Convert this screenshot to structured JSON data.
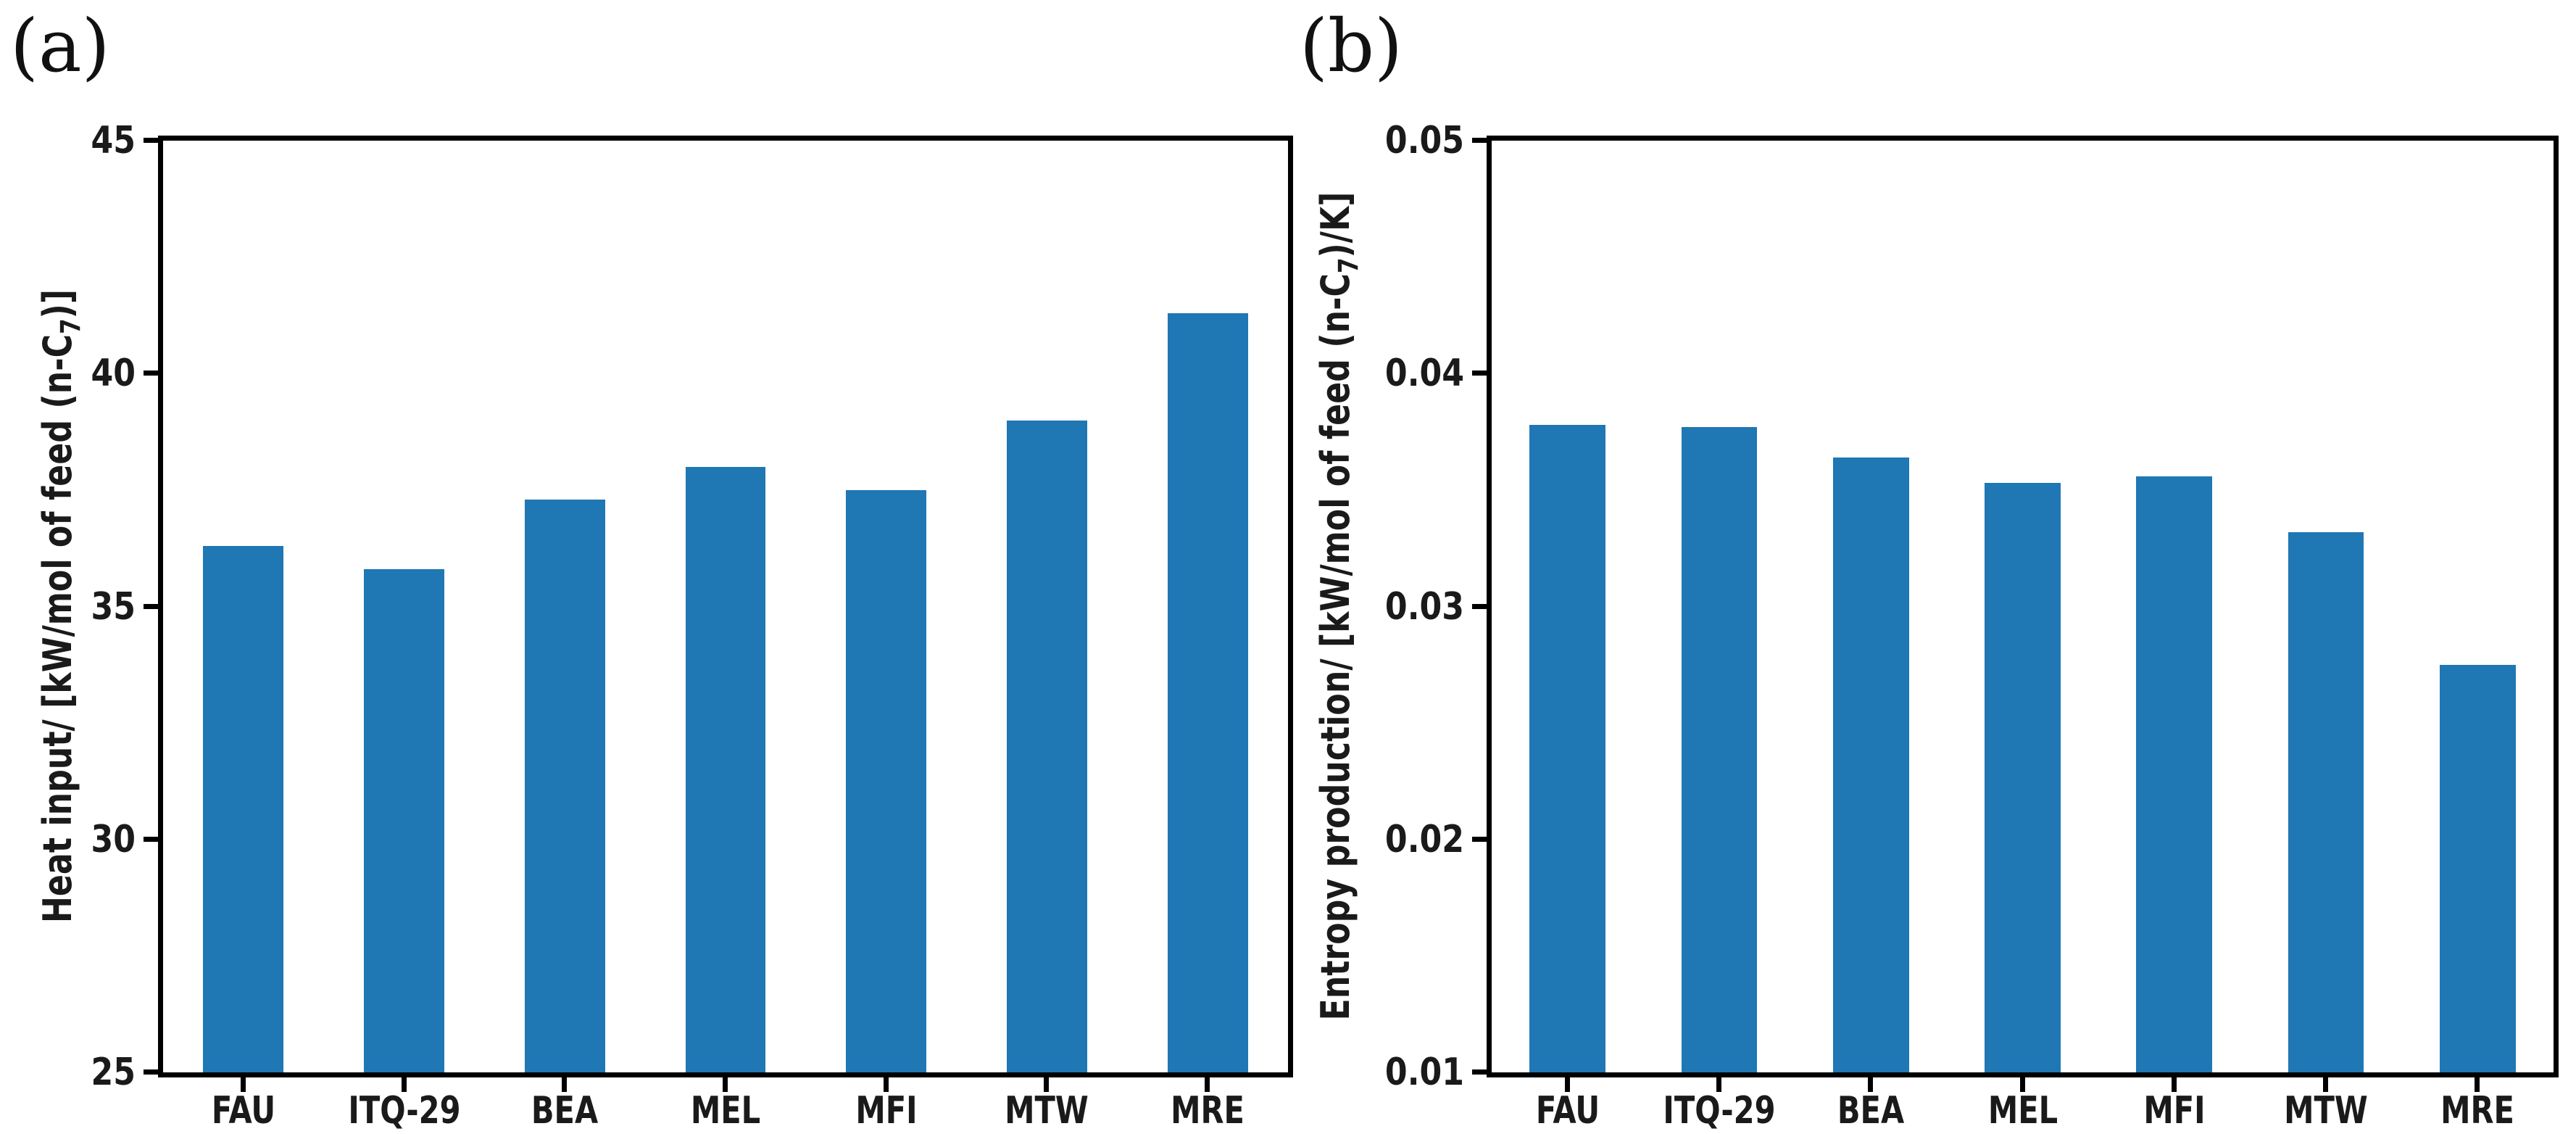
{
  "figure": {
    "background": "#ffffff",
    "axis_color": "#000000",
    "text_color": "#1a1a1a",
    "bar_color": "#1f77b4"
  },
  "chart_data": [
    {
      "type": "bar",
      "panel_label": "(a)",
      "title": "",
      "xlabel": "",
      "ylabel": "Heat input/ [kW/mol of feed (n-C₇)]",
      "ylabel_pre": "Heat input/ [kW/mol of feed (n-C",
      "ylabel_sub": "7",
      "ylabel_post": ")]",
      "categories": [
        "FAU",
        "ITQ-29",
        "BEA",
        "MEL",
        "MFI",
        "MTW",
        "MRE"
      ],
      "values": [
        36.3,
        35.8,
        37.3,
        38.0,
        37.5,
        39.0,
        41.3
      ],
      "ylim": [
        25,
        45
      ],
      "yticks": [
        45,
        40,
        35,
        30,
        25
      ],
      "ytick_labels": [
        "45",
        "40",
        "35",
        "30",
        "25"
      ],
      "bar_color": "#1f77b4",
      "bar_width_ratio": 0.5,
      "grid": false,
      "legend": false
    },
    {
      "type": "bar",
      "panel_label": "(b)",
      "title": "",
      "xlabel": "",
      "ylabel": "Entropy production/ [kW/mol of feed (n-C₇)/K]",
      "ylabel_pre": "Entropy production/ [kW/mol of feed (n-C",
      "ylabel_sub": "7",
      "ylabel_post": ")/K]",
      "categories": [
        "FAU",
        "ITQ-29",
        "BEA",
        "MEL",
        "MFI",
        "MTW",
        "MRE"
      ],
      "values": [
        0.0378,
        0.0377,
        0.0364,
        0.0353,
        0.0356,
        0.0332,
        0.0275
      ],
      "ylim": [
        0.01,
        0.05
      ],
      "yticks": [
        0.05,
        0.04,
        0.03,
        0.02,
        0.01
      ],
      "ytick_labels": [
        "0.05",
        "0.04",
        "0.03",
        "0.02",
        "0.01"
      ],
      "bar_color": "#1f77b4",
      "bar_width_ratio": 0.5,
      "grid": false,
      "legend": false
    }
  ]
}
